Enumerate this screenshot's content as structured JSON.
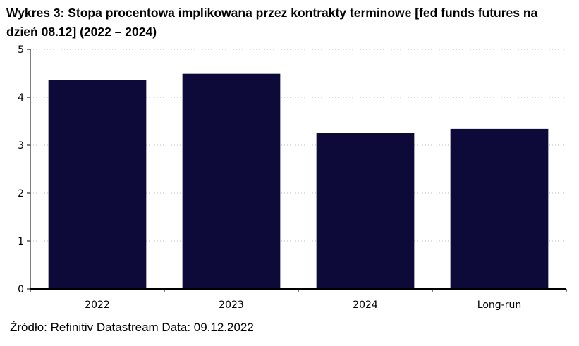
{
  "title": "Wykres 3: Stopa procentowa implikowana przez kontrakty terminowe [fed funds futures na dzień 08.12] (2022 – 2024)",
  "source": "Źródło: Refinitiv Datastream Data: 09.12.2022",
  "colors": {
    "bar": "#0d0a3a",
    "axis": "#000000",
    "grid": "#bdbdbd"
  },
  "chart_data": {
    "type": "bar",
    "title": "Wykres 3: Stopa procentowa implikowana przez kontrakty terminowe [fed funds futures na dzień 08.12] (2022 – 2024)",
    "xlabel": "",
    "ylabel": "",
    "categories": [
      "2022",
      "2023",
      "2024",
      "Long-run"
    ],
    "values": [
      4.36,
      4.49,
      3.25,
      3.34
    ],
    "ylim": [
      0,
      5
    ],
    "yticks": [
      "0",
      "1",
      "2",
      "3",
      "4",
      "5"
    ],
    "grid": "horizontal dotted",
    "legend": "none"
  }
}
